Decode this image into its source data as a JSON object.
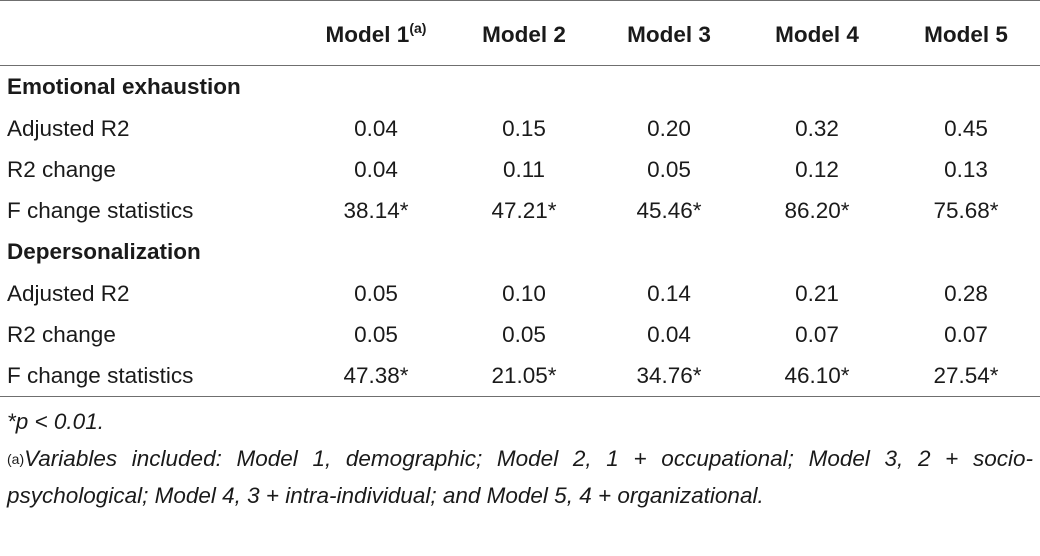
{
  "table": {
    "columns": [
      "Model 1",
      "Model 2",
      "Model 3",
      "Model 4",
      "Model 5"
    ],
    "column_note_mark": "(a)",
    "sections": [
      {
        "title": "Emotional exhaustion",
        "rows": [
          {
            "label": "Adjusted R2",
            "values": [
              "0.04",
              "0.15",
              "0.20",
              "0.32",
              "0.45"
            ]
          },
          {
            "label": "R2 change",
            "values": [
              "0.04",
              "0.11",
              "0.05",
              "0.12",
              "0.13"
            ]
          },
          {
            "label": "F change statistics",
            "values": [
              "38.14*",
              "47.21*",
              "45.46*",
              "86.20*",
              "75.68*"
            ]
          }
        ]
      },
      {
        "title": "Depersonalization",
        "rows": [
          {
            "label": "Adjusted R2",
            "values": [
              "0.05",
              "0.10",
              "0.14",
              "0.21",
              "0.28"
            ]
          },
          {
            "label": "R2 change",
            "values": [
              "0.05",
              "0.05",
              "0.04",
              "0.07",
              "0.07"
            ]
          },
          {
            "label": "F change statistics",
            "values": [
              "47.38*",
              "21.05*",
              "34.76*",
              "46.10*",
              "27.54*"
            ]
          }
        ]
      }
    ]
  },
  "notes": {
    "significance": "*p < 0.01.",
    "variables_mark": "(a)",
    "variables": "Variables included: Model 1, demographic; Model 2, 1 + occupational; Model 3, 2 + socio-psychological; Model 4, 3 + intra-individual; and Model 5, 4 + organizational."
  }
}
